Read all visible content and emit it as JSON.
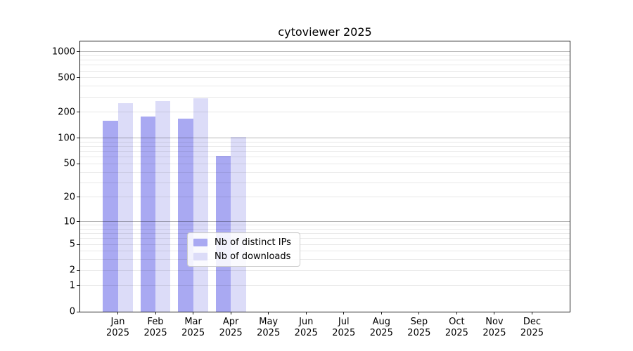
{
  "chart_data": {
    "type": "bar",
    "title": "cytoviewer 2025",
    "y_scale": "log1p",
    "categories": [
      "Jan",
      "Feb",
      "Mar",
      "Apr",
      "May",
      "Jun",
      "Jul",
      "Aug",
      "Sep",
      "Oct",
      "Nov",
      "Dec"
    ],
    "x_tick_year": "2025",
    "series": [
      {
        "name": "Nb of distinct IPs",
        "color": "#a9a9f2",
        "values": [
          158,
          180,
          170,
          62,
          0,
          0,
          0,
          0,
          0,
          0,
          0,
          0
        ]
      },
      {
        "name": "Nb of downloads",
        "color": "#dcdcf8",
        "values": [
          256,
          270,
          290,
          103,
          0,
          0,
          0,
          0,
          0,
          0,
          0,
          0
        ]
      }
    ],
    "y_ticks": [
      0,
      1,
      2,
      5,
      10,
      20,
      50,
      100,
      200,
      500,
      1000
    ],
    "ylim": [
      0,
      1320
    ],
    "grid": {
      "major_values": [
        10,
        100,
        1000
      ],
      "minor_values": [
        1,
        2,
        3,
        4,
        5,
        6,
        7,
        8,
        9,
        20,
        30,
        40,
        50,
        60,
        70,
        80,
        90,
        200,
        300,
        400,
        500,
        600,
        700,
        800,
        900
      ]
    },
    "legend": {
      "position": "lower-center"
    }
  },
  "colors": {
    "bar_distinct_ips": "#a9a9f2",
    "bar_downloads": "#dcdcf8",
    "grid_major": "#b3b3b3",
    "grid_minor": "#e9e9e9",
    "spine": "#1a1a1a",
    "legend_border": "#cccccc"
  }
}
